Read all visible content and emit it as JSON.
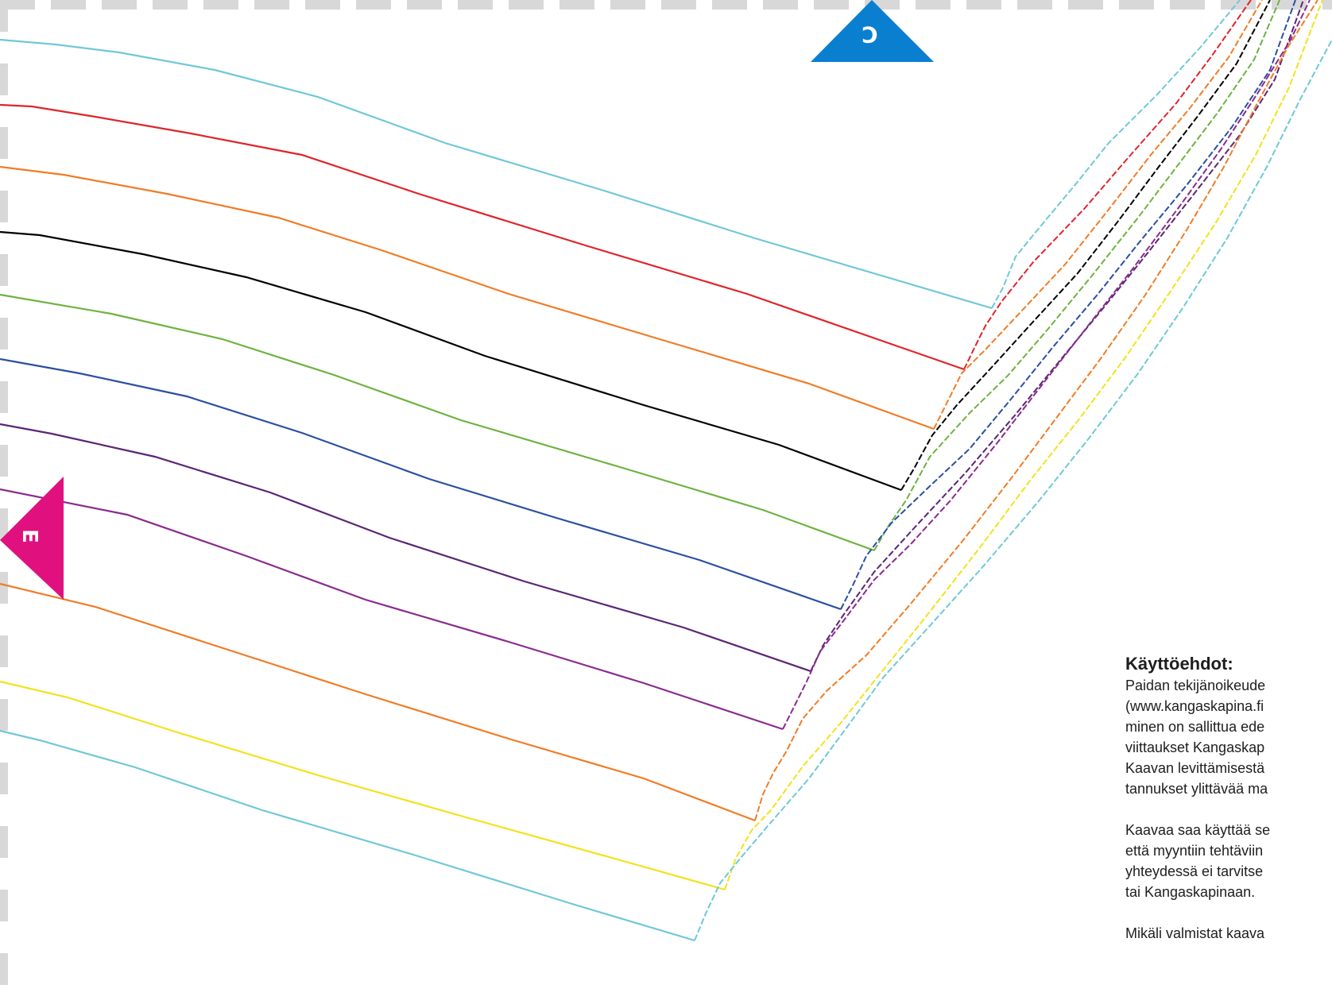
{
  "pattern": {
    "markers": [
      {
        "id": "c",
        "label": "C",
        "color": "#0a7fcf"
      },
      {
        "id": "e",
        "label": "E",
        "color": "#e0117f"
      }
    ],
    "size_lines": [
      {
        "color": "#6fc8d8"
      },
      {
        "color": "#e0242a"
      },
      {
        "color": "#f07c26"
      },
      {
        "color": "#000000"
      },
      {
        "color": "#6db33f"
      },
      {
        "color": "#2a4fa3"
      },
      {
        "color": "#5b2574"
      },
      {
        "color": "#8a2b8f"
      },
      {
        "color": "#f07c26"
      },
      {
        "color": "#f2e21c"
      },
      {
        "color": "#6fc8d8"
      }
    ]
  },
  "terms": {
    "title": "Käyttöehdot:",
    "paragraph1": [
      "Paidan tekijänoikeude",
      "(www.kangaskapina.fi",
      "minen on sallittua ede",
      "viittaukset Kangaskap",
      "Kaavan levittämisestä",
      "tannukset ylittävää ma"
    ],
    "paragraph2": [
      "Kaavaa saa käyttää se",
      "että myyntiin tehtäviin",
      "yhteydessä ei tarvitse",
      "tai Kangaskapinaan."
    ],
    "paragraph3": [
      "Mikäli valmistat kaava"
    ]
  }
}
